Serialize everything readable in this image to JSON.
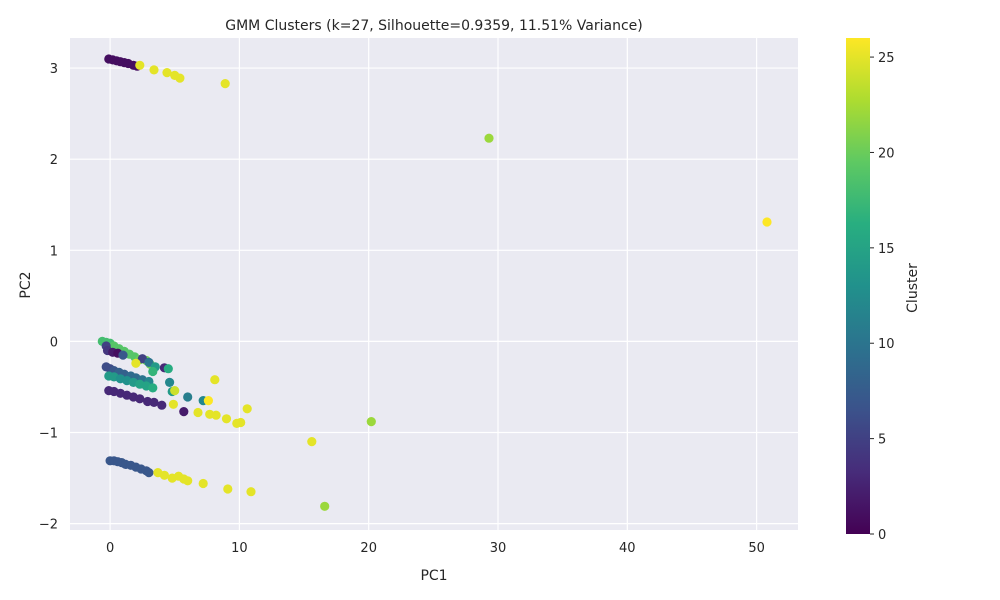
{
  "chart_data": {
    "type": "scatter",
    "title": "GMM Clusters (k=27, Silhouette=0.9359, 11.51% Variance)",
    "xlabel": "PC1",
    "ylabel": "PC2",
    "xlim": [
      -3.1,
      53.2
    ],
    "ylim": [
      -2.07,
      3.33
    ],
    "xticks": [
      0,
      10,
      20,
      30,
      40,
      50
    ],
    "yticks": [
      -2,
      -1,
      0,
      1,
      2,
      3
    ],
    "xtick_labels": [
      "0",
      "10",
      "20",
      "30",
      "40",
      "50"
    ],
    "ytick_labels": [
      "−2",
      "−1",
      "0",
      "1",
      "2",
      "3"
    ],
    "grid": true,
    "background": "#eaeaf2",
    "colormap": "viridis",
    "colorbar": {
      "label": "Cluster",
      "range": [
        0,
        26
      ],
      "ticks": [
        0,
        5,
        10,
        15,
        20,
        25
      ],
      "tick_labels": [
        "0",
        "5",
        "10",
        "15",
        "20",
        "25"
      ]
    },
    "points": [
      {
        "x": -0.1,
        "y": 3.1,
        "c": 1
      },
      {
        "x": 0.2,
        "y": 3.09,
        "c": 1
      },
      {
        "x": 0.5,
        "y": 3.08,
        "c": 1
      },
      {
        "x": 0.8,
        "y": 3.07,
        "c": 1
      },
      {
        "x": 1.1,
        "y": 3.06,
        "c": 1
      },
      {
        "x": 1.4,
        "y": 3.05,
        "c": 1
      },
      {
        "x": 1.8,
        "y": 3.03,
        "c": 1
      },
      {
        "x": 2.1,
        "y": 3.02,
        "c": 1
      },
      {
        "x": 2.3,
        "y": 3.03,
        "c": 25
      },
      {
        "x": 3.4,
        "y": 2.98,
        "c": 25
      },
      {
        "x": 4.4,
        "y": 2.95,
        "c": 25
      },
      {
        "x": 5.0,
        "y": 2.92,
        "c": 25
      },
      {
        "x": 5.4,
        "y": 2.89,
        "c": 25
      },
      {
        "x": 8.9,
        "y": 2.83,
        "c": 25
      },
      {
        "x": 29.3,
        "y": 2.23,
        "c": 22
      },
      {
        "x": 50.8,
        "y": 1.31,
        "c": 26
      },
      {
        "x": -0.6,
        "y": 0.0,
        "c": 18
      },
      {
        "x": -0.3,
        "y": -0.01,
        "c": 18
      },
      {
        "x": 0.0,
        "y": -0.02,
        "c": 18
      },
      {
        "x": 0.3,
        "y": -0.05,
        "c": 19
      },
      {
        "x": 0.7,
        "y": -0.08,
        "c": 19
      },
      {
        "x": 1.1,
        "y": -0.11,
        "c": 19
      },
      {
        "x": 1.5,
        "y": -0.14,
        "c": 19
      },
      {
        "x": 1.9,
        "y": -0.17,
        "c": 19
      },
      {
        "x": 2.3,
        "y": -0.2,
        "c": 20
      },
      {
        "x": 2.8,
        "y": -0.21,
        "c": 20
      },
      {
        "x": 3.1,
        "y": -0.25,
        "c": 20
      },
      {
        "x": -0.3,
        "y": -0.05,
        "c": 5
      },
      {
        "x": -0.2,
        "y": -0.1,
        "c": 4
      },
      {
        "x": 0.2,
        "y": -0.12,
        "c": 2
      },
      {
        "x": 0.6,
        "y": -0.13,
        "c": 1
      },
      {
        "x": 1.0,
        "y": -0.15,
        "c": 7
      },
      {
        "x": 2.5,
        "y": -0.19,
        "c": 5
      },
      {
        "x": 3.0,
        "y": -0.23,
        "c": 10
      },
      {
        "x": 2.0,
        "y": -0.24,
        "c": 25
      },
      {
        "x": 3.5,
        "y": -0.28,
        "c": 14
      },
      {
        "x": 4.2,
        "y": -0.29,
        "c": 3
      },
      {
        "x": 4.5,
        "y": -0.3,
        "c": 16
      },
      {
        "x": 3.3,
        "y": -0.33,
        "c": 17
      },
      {
        "x": -0.3,
        "y": -0.28,
        "c": 6
      },
      {
        "x": 0.0,
        "y": -0.3,
        "c": 6
      },
      {
        "x": 0.3,
        "y": -0.32,
        "c": 7
      },
      {
        "x": 0.7,
        "y": -0.34,
        "c": 8
      },
      {
        "x": 1.1,
        "y": -0.36,
        "c": 8
      },
      {
        "x": 1.6,
        "y": -0.38,
        "c": 9
      },
      {
        "x": 2.0,
        "y": -0.4,
        "c": 9
      },
      {
        "x": 2.5,
        "y": -0.42,
        "c": 10
      },
      {
        "x": 3.0,
        "y": -0.44,
        "c": 12
      },
      {
        "x": -0.1,
        "y": -0.38,
        "c": 14
      },
      {
        "x": 0.3,
        "y": -0.39,
        "c": 14
      },
      {
        "x": 0.8,
        "y": -0.41,
        "c": 13
      },
      {
        "x": 1.3,
        "y": -0.43,
        "c": 13
      },
      {
        "x": 1.8,
        "y": -0.45,
        "c": 14
      },
      {
        "x": 2.3,
        "y": -0.47,
        "c": 15
      },
      {
        "x": 2.8,
        "y": -0.49,
        "c": 15
      },
      {
        "x": 3.3,
        "y": -0.51,
        "c": 16
      },
      {
        "x": 4.6,
        "y": -0.45,
        "c": 12
      },
      {
        "x": 4.8,
        "y": -0.55,
        "c": 14
      },
      {
        "x": 5.0,
        "y": -0.54,
        "c": 24
      },
      {
        "x": 4.9,
        "y": -0.69,
        "c": 25
      },
      {
        "x": 6.0,
        "y": -0.61,
        "c": 11
      },
      {
        "x": 7.2,
        "y": -0.65,
        "c": 12
      },
      {
        "x": 7.6,
        "y": -0.65,
        "c": 26
      },
      {
        "x": 8.1,
        "y": -0.42,
        "c": 25
      },
      {
        "x": 10.6,
        "y": -0.74,
        "c": 25
      },
      {
        "x": -0.1,
        "y": -0.54,
        "c": 3
      },
      {
        "x": 0.3,
        "y": -0.55,
        "c": 3
      },
      {
        "x": 0.8,
        "y": -0.57,
        "c": 3
      },
      {
        "x": 1.3,
        "y": -0.59,
        "c": 3
      },
      {
        "x": 1.8,
        "y": -0.61,
        "c": 3
      },
      {
        "x": 2.3,
        "y": -0.63,
        "c": 3
      },
      {
        "x": 2.9,
        "y": -0.66,
        "c": 3
      },
      {
        "x": 3.4,
        "y": -0.67,
        "c": 3
      },
      {
        "x": 4.0,
        "y": -0.7,
        "c": 3
      },
      {
        "x": 5.7,
        "y": -0.77,
        "c": 2
      },
      {
        "x": 6.8,
        "y": -0.78,
        "c": 25
      },
      {
        "x": 7.7,
        "y": -0.8,
        "c": 25
      },
      {
        "x": 8.2,
        "y": -0.81,
        "c": 25
      },
      {
        "x": 9.0,
        "y": -0.85,
        "c": 25
      },
      {
        "x": 9.8,
        "y": -0.9,
        "c": 25
      },
      {
        "x": 10.1,
        "y": -0.89,
        "c": 25
      },
      {
        "x": 20.2,
        "y": -0.88,
        "c": 22
      },
      {
        "x": 15.6,
        "y": -1.1,
        "c": 25
      },
      {
        "x": 0.0,
        "y": -1.31,
        "c": 7
      },
      {
        "x": 0.3,
        "y": -1.31,
        "c": 7
      },
      {
        "x": 0.6,
        "y": -1.32,
        "c": 7
      },
      {
        "x": 0.9,
        "y": -1.33,
        "c": 7
      },
      {
        "x": 1.2,
        "y": -1.35,
        "c": 7
      },
      {
        "x": 1.6,
        "y": -1.36,
        "c": 7
      },
      {
        "x": 2.0,
        "y": -1.38,
        "c": 7
      },
      {
        "x": 2.4,
        "y": -1.4,
        "c": 7
      },
      {
        "x": 2.8,
        "y": -1.42,
        "c": 7
      },
      {
        "x": 3.0,
        "y": -1.44,
        "c": 7
      },
      {
        "x": 3.7,
        "y": -1.44,
        "c": 25
      },
      {
        "x": 4.2,
        "y": -1.47,
        "c": 25
      },
      {
        "x": 4.8,
        "y": -1.5,
        "c": 25
      },
      {
        "x": 5.3,
        "y": -1.48,
        "c": 25
      },
      {
        "x": 5.7,
        "y": -1.51,
        "c": 25
      },
      {
        "x": 6.0,
        "y": -1.53,
        "c": 25
      },
      {
        "x": 7.2,
        "y": -1.56,
        "c": 25
      },
      {
        "x": 9.1,
        "y": -1.62,
        "c": 25
      },
      {
        "x": 10.9,
        "y": -1.65,
        "c": 25
      },
      {
        "x": 16.6,
        "y": -1.81,
        "c": 22
      }
    ]
  }
}
